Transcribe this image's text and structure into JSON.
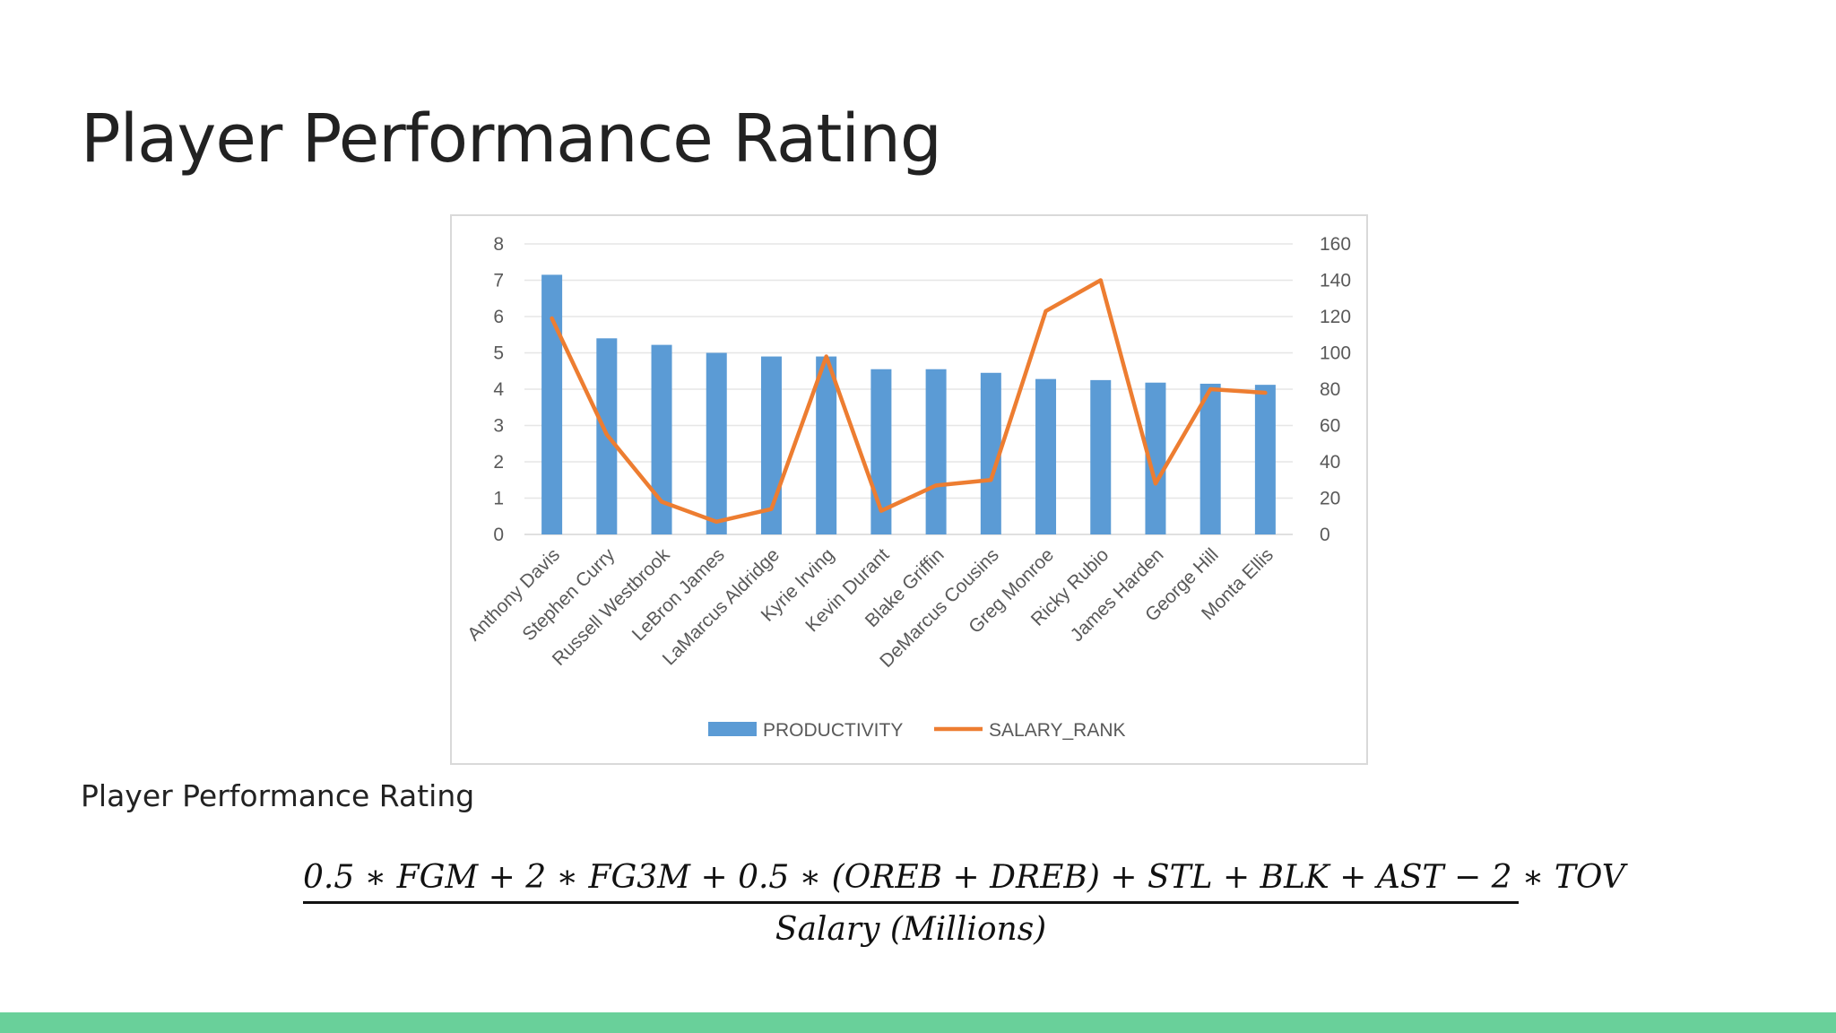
{
  "slide": {
    "title": "Player Performance Rating",
    "subtitle_label": "Player Performance Rating",
    "formula_numerator": "0.5 ∗ FGM + 2 ∗ FG3M + 0.5 ∗ (OREB + DREB) + STL + BLK + AST − 2 ∗ TOV",
    "formula_denominator": "Salary (Millions)",
    "accent_bar_color": "#69d09a"
  },
  "chart_data": {
    "type": "bar",
    "categories": [
      "Anthony Davis",
      "Stephen Curry",
      "Russell Westbrook",
      "LeBron James",
      "LaMarcus Aldridge",
      "Kyrie Irving",
      "Kevin Durant",
      "Blake Griffin",
      "DeMarcus Cousins",
      "Greg Monroe",
      "Ricky Rubio",
      "James Harden",
      "George Hill",
      "Monta Ellis"
    ],
    "series": [
      {
        "name": "PRODUCTIVITY",
        "type": "bar",
        "axis": "left",
        "color": "#5b9bd5",
        "values": [
          7.15,
          5.4,
          5.22,
          5.0,
          4.9,
          4.9,
          4.55,
          4.55,
          4.45,
          4.28,
          4.25,
          4.18,
          4.15,
          4.12
        ]
      },
      {
        "name": "SALARY_RANK",
        "type": "line",
        "axis": "right",
        "color": "#ed7d31",
        "values": [
          119,
          55,
          18,
          7,
          14,
          98,
          13,
          27,
          30,
          123,
          140,
          28,
          80,
          78
        ]
      }
    ],
    "y_left": {
      "ylim": [
        0,
        8
      ],
      "ticks": [
        "0",
        "1",
        "2",
        "3",
        "4",
        "5",
        "6",
        "7",
        "8"
      ]
    },
    "y_right": {
      "ylim": [
        0,
        160
      ],
      "ticks": [
        "0",
        "20",
        "40",
        "60",
        "80",
        "100",
        "120",
        "140",
        "160"
      ]
    },
    "grid": true,
    "legend_position": "bottom"
  }
}
